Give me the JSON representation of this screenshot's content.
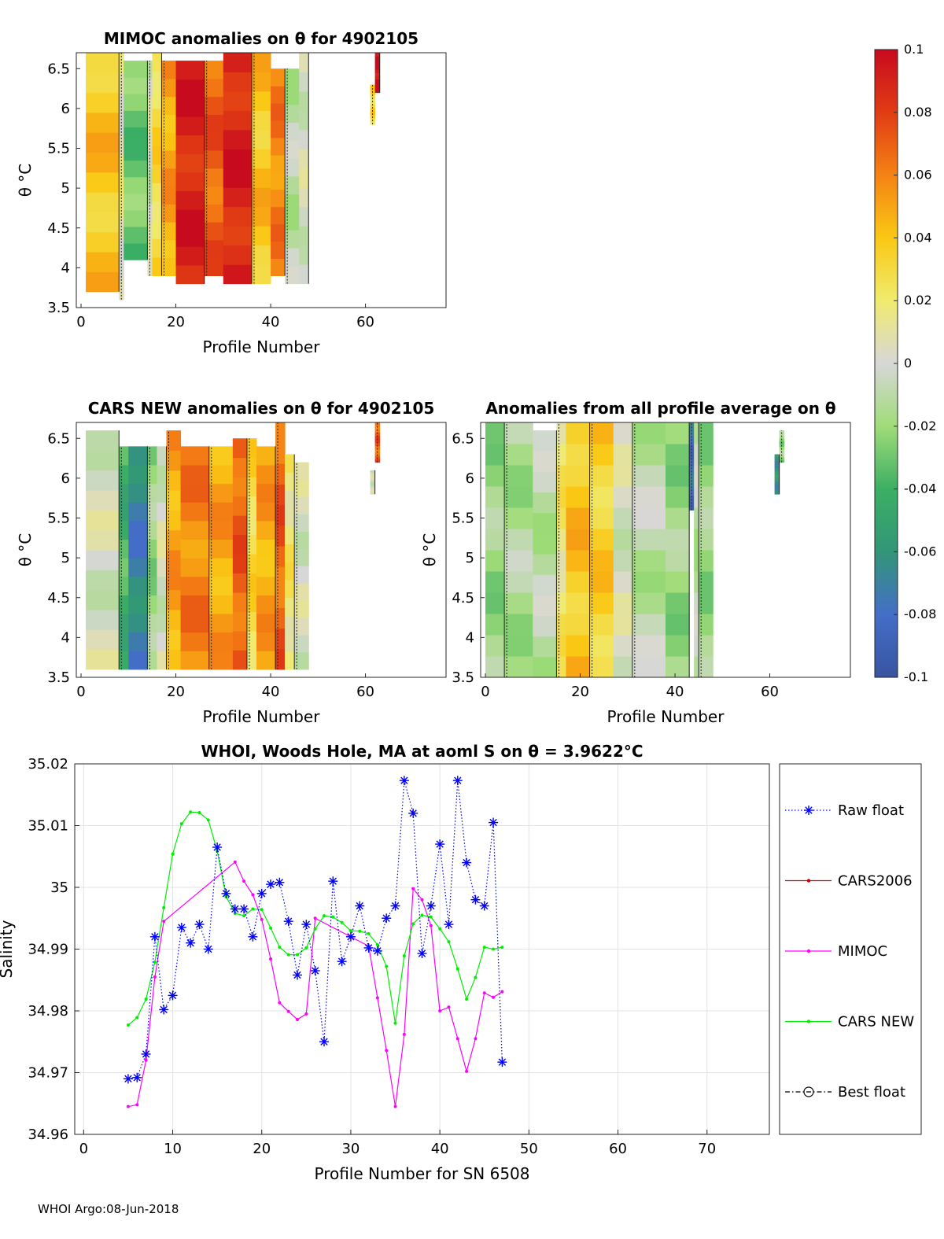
{
  "footer": "WHOI Argo:08-Jun-2018",
  "colorbar": {
    "ticks": [
      0.1,
      0.08,
      0.06,
      0.04,
      0.02,
      0,
      -0.02,
      -0.04,
      -0.06,
      -0.08,
      -0.1
    ],
    "tick_labels": [
      "0.1",
      "0.08",
      "0.06",
      "0.04",
      "0.02",
      "0",
      "-0.02",
      "-0.04",
      "-0.06",
      "-0.08",
      "-0.1"
    ],
    "range": [
      -0.1,
      0.1
    ]
  },
  "chart_data": [
    {
      "type": "heatmap",
      "title": "MIMOC anomalies on θ  for 4902105",
      "xlabel": "Profile Number",
      "ylabel": "θ °C",
      "xlim": [
        -1,
        77
      ],
      "ylim": [
        3.5,
        6.7
      ],
      "xticks": [
        0,
        20,
        40,
        60
      ],
      "yticks": [
        3.5,
        4,
        4.5,
        5,
        5.5,
        6,
        6.5
      ],
      "ytick_labels": [
        "3.5",
        "4",
        "4.5",
        "5",
        "5.5",
        "6",
        "6.5"
      ],
      "columns": [
        {
          "x0": 1,
          "x1": 8,
          "ymin": 3.7,
          "ymax": 6.7,
          "value": 0.04
        },
        {
          "x0": 8,
          "x1": 9,
          "ymin": 3.6,
          "ymax": 6.7,
          "value": 0.01
        },
        {
          "x0": 9,
          "x1": 14,
          "ymin": 4.1,
          "ymax": 6.6,
          "value": -0.03
        },
        {
          "x0": 14,
          "x1": 15,
          "ymin": 3.9,
          "ymax": 6.6,
          "value": 0.0
        },
        {
          "x0": 15,
          "x1": 17,
          "ymin": 3.9,
          "ymax": 6.7,
          "value": 0.03
        },
        {
          "x0": 17,
          "x1": 20,
          "ymin": 3.9,
          "ymax": 6.6,
          "value": 0.05
        },
        {
          "x0": 20,
          "x1": 26,
          "ymin": 3.8,
          "ymax": 6.6,
          "value": 0.09
        },
        {
          "x0": 26,
          "x1": 30,
          "ymin": 3.9,
          "ymax": 6.6,
          "value": 0.07
        },
        {
          "x0": 30,
          "x1": 36,
          "ymin": 3.8,
          "ymax": 6.7,
          "value": 0.09
        },
        {
          "x0": 36,
          "x1": 40,
          "ymin": 3.8,
          "ymax": 6.7,
          "value": 0.04
        },
        {
          "x0": 40,
          "x1": 43,
          "ymin": 3.9,
          "ymax": 6.5,
          "value": 0.06
        },
        {
          "x0": 43,
          "x1": 46,
          "ymin": 3.8,
          "ymax": 6.5,
          "value": -0.01
        },
        {
          "x0": 46,
          "x1": 48,
          "ymin": 3.8,
          "ymax": 6.7,
          "value": 0.0
        },
        {
          "x0": 61,
          "x1": 62,
          "ymin": 5.8,
          "ymax": 6.3,
          "value": 0.03
        },
        {
          "x0": 62,
          "x1": 63,
          "ymin": 6.2,
          "ymax": 6.7,
          "value": 0.1
        }
      ]
    },
    {
      "type": "heatmap",
      "title": "CARS NEW anomalies on θ for 4902105",
      "xlabel": "Profile Number",
      "ylabel": "θ °C",
      "xlim": [
        -1,
        77
      ],
      "ylim": [
        3.5,
        6.7
      ],
      "xticks": [
        0,
        20,
        40,
        60
      ],
      "yticks": [
        3.5,
        4,
        4.5,
        5,
        5.5,
        6,
        6.5
      ],
      "ytick_labels": [
        "3.5",
        "4",
        "4.5",
        "5",
        "5.5",
        "6",
        "6.5"
      ],
      "columns": [
        {
          "x0": 1,
          "x1": 8,
          "ymin": 3.6,
          "ymax": 6.6,
          "value": 0.0
        },
        {
          "x0": 8,
          "x1": 10,
          "ymin": 3.6,
          "ymax": 6.4,
          "value": -0.04
        },
        {
          "x0": 10,
          "x1": 14,
          "ymin": 3.6,
          "ymax": 6.4,
          "value": -0.07
        },
        {
          "x0": 14,
          "x1": 16,
          "ymin": 3.6,
          "ymax": 6.4,
          "value": -0.02
        },
        {
          "x0": 16,
          "x1": 18,
          "ymin": 3.6,
          "ymax": 6.4,
          "value": 0.0
        },
        {
          "x0": 18,
          "x1": 21,
          "ymin": 3.6,
          "ymax": 6.6,
          "value": 0.05
        },
        {
          "x0": 21,
          "x1": 27,
          "ymin": 3.6,
          "ymax": 6.4,
          "value": 0.06
        },
        {
          "x0": 27,
          "x1": 32,
          "ymin": 3.6,
          "ymax": 6.4,
          "value": 0.05
        },
        {
          "x0": 32,
          "x1": 35,
          "ymin": 3.6,
          "ymax": 6.5,
          "value": 0.07
        },
        {
          "x0": 35,
          "x1": 37,
          "ymin": 3.6,
          "ymax": 6.5,
          "value": 0.03
        },
        {
          "x0": 37,
          "x1": 41,
          "ymin": 3.6,
          "ymax": 6.4,
          "value": 0.05
        },
        {
          "x0": 41,
          "x1": 43,
          "ymin": 3.6,
          "ymax": 6.7,
          "value": 0.07
        },
        {
          "x0": 43,
          "x1": 45,
          "ymin": 3.6,
          "ymax": 6.3,
          "value": 0.02
        },
        {
          "x0": 45,
          "x1": 48,
          "ymin": 3.6,
          "ymax": 6.2,
          "value": 0.0
        },
        {
          "x0": 61,
          "x1": 62,
          "ymin": 5.8,
          "ymax": 6.1,
          "value": 0.0
        },
        {
          "x0": 62,
          "x1": 63,
          "ymin": 6.2,
          "ymax": 6.7,
          "value": 0.07
        }
      ]
    },
    {
      "type": "heatmap",
      "title": "Anomalies from all profile average on θ",
      "xlabel": "Profile Number",
      "ylabel": "θ °C",
      "xlim": [
        -1,
        77
      ],
      "ylim": [
        3.5,
        6.7
      ],
      "xticks": [
        0,
        20,
        40,
        60
      ],
      "yticks": [
        3.5,
        4,
        4.5,
        5,
        5.5,
        6,
        6.5
      ],
      "ytick_labels": [
        "3.5",
        "4",
        "4.5",
        "5",
        "5.5",
        "6",
        "6.5"
      ],
      "columns": [
        {
          "x0": 0,
          "x1": 4,
          "ymin": 3.5,
          "ymax": 6.7,
          "value": -0.02
        },
        {
          "x0": 4,
          "x1": 10,
          "ymin": 3.5,
          "ymax": 6.7,
          "value": -0.015
        },
        {
          "x0": 10,
          "x1": 15,
          "ymin": 3.5,
          "ymax": 6.6,
          "value": -0.01
        },
        {
          "x0": 15,
          "x1": 17,
          "ymin": 3.5,
          "ymax": 6.7,
          "value": 0.02
        },
        {
          "x0": 17,
          "x1": 22,
          "ymin": 3.5,
          "ymax": 6.7,
          "value": 0.04
        },
        {
          "x0": 22,
          "x1": 27,
          "ymin": 3.5,
          "ymax": 6.7,
          "value": 0.035
        },
        {
          "x0": 27,
          "x1": 31,
          "ymin": 3.5,
          "ymax": 6.7,
          "value": 0.0
        },
        {
          "x0": 31,
          "x1": 38,
          "ymin": 3.5,
          "ymax": 6.7,
          "value": -0.01
        },
        {
          "x0": 38,
          "x1": 43,
          "ymin": 3.5,
          "ymax": 6.7,
          "value": -0.02
        },
        {
          "x0": 43,
          "x1": 44,
          "ymin": 5.6,
          "ymax": 6.7,
          "value": -0.08
        },
        {
          "x0": 44,
          "x1": 45,
          "ymin": 3.5,
          "ymax": 6.7,
          "value": -0.01
        },
        {
          "x0": 45,
          "x1": 48,
          "ymin": 3.5,
          "ymax": 6.7,
          "value": -0.02
        },
        {
          "x0": 61,
          "x1": 62,
          "ymin": 5.8,
          "ymax": 6.3,
          "value": -0.06
        },
        {
          "x0": 62,
          "x1": 63,
          "ymin": 6.2,
          "ymax": 6.6,
          "value": -0.02
        }
      ]
    },
    {
      "type": "line",
      "title": "WHOI, Woods Hole, MA at aoml S on θ = 3.9622°C",
      "xlabel": "Profile Number for SN 6508",
      "ylabel": "Salinity",
      "xlim": [
        -1,
        77
      ],
      "ylim": [
        34.96,
        35.02
      ],
      "xticks": [
        0,
        10,
        20,
        30,
        40,
        50,
        60,
        70
      ],
      "yticks": [
        34.96,
        34.97,
        34.98,
        34.99,
        35,
        35.01,
        35.02
      ],
      "ytick_labels": [
        "34.96",
        "34.97",
        "34.98",
        "34.99",
        "35",
        "35.01",
        "35.02"
      ],
      "grid": true,
      "legend_position": "right-outside",
      "series": [
        {
          "name": "Raw float",
          "color": "#0000ff",
          "marker": "asterisk",
          "line": "dotted",
          "x": [
            5,
            6,
            7,
            8,
            9,
            10,
            11,
            12,
            13,
            14,
            15,
            16,
            17,
            18,
            19,
            20,
            21,
            22,
            23,
            24,
            25,
            26,
            27,
            28,
            29,
            30,
            31,
            32,
            33,
            34,
            35,
            36,
            37,
            38,
            39,
            40,
            41,
            42,
            43,
            44,
            45,
            46,
            47
          ],
          "y": [
            34.969,
            34.9692,
            34.973,
            34.992,
            34.9802,
            34.9825,
            34.9935,
            34.991,
            34.994,
            34.99,
            35.0065,
            34.999,
            34.9965,
            34.9965,
            34.992,
            34.999,
            35.0005,
            35.0008,
            34.9945,
            34.9858,
            34.994,
            34.9865,
            34.975,
            35.001,
            34.988,
            34.992,
            34.997,
            34.9902,
            34.9897,
            34.995,
            34.997,
            35.0173,
            35.012,
            34.9893,
            34.997,
            35.007,
            34.994,
            35.0173,
            35.004,
            34.998,
            34.997,
            35.0105,
            34.9717
          ]
        },
        {
          "name": "CARS2006",
          "color": "#d00000",
          "marker": "dot",
          "line": "solid",
          "x": [],
          "y": []
        },
        {
          "name": "MIMOC",
          "color": "#ff00ff",
          "marker": "dot",
          "line": "solid",
          "x": [
            5,
            6,
            7,
            8,
            9,
            17,
            18,
            19,
            20,
            21,
            22,
            23,
            24,
            25,
            26,
            32,
            33,
            34,
            35,
            36,
            37,
            38,
            39,
            40,
            41,
            42,
            43,
            44,
            45,
            46,
            47
          ],
          "y": [
            34.9645,
            34.9648,
            34.972,
            34.9855,
            34.9945,
            35.0041,
            35.001,
            34.9988,
            34.9948,
            34.9884,
            34.9813,
            34.9799,
            34.9786,
            34.9795,
            34.995,
            34.9905,
            34.9821,
            34.9736,
            34.9645,
            34.9762,
            34.9998,
            34.998,
            34.9938,
            34.98,
            34.9806,
            34.9755,
            34.9702,
            34.9755,
            34.9829,
            34.9822,
            34.9831
          ]
        },
        {
          "name": "CARS NEW",
          "color": "#00ee00",
          "marker": "dot",
          "line": "solid",
          "x": [
            5,
            6,
            7,
            8,
            9,
            10,
            11,
            12,
            13,
            14,
            15,
            16,
            17,
            18,
            19,
            20,
            21,
            22,
            23,
            24,
            25,
            26,
            27,
            28,
            29,
            30,
            31,
            32,
            33,
            34,
            35,
            36,
            37,
            38,
            39,
            40,
            41,
            42,
            43,
            44,
            45,
            46,
            47
          ],
          "y": [
            34.9777,
            34.9789,
            34.9819,
            34.9879,
            34.9967,
            35.0054,
            35.0103,
            35.0122,
            35.0121,
            35.0109,
            35.0059,
            34.9985,
            34.9958,
            34.9954,
            34.9965,
            34.9964,
            34.9934,
            34.9903,
            34.9891,
            34.9891,
            34.9902,
            34.9933,
            34.9954,
            34.9952,
            34.9943,
            34.993,
            34.9929,
            34.9925,
            34.9907,
            34.9872,
            34.978,
            34.9889,
            34.9941,
            34.9955,
            34.9952,
            34.9933,
            34.9912,
            34.9868,
            34.9819,
            34.9854,
            34.9903,
            34.99,
            34.9903
          ]
        },
        {
          "name": "Best float",
          "color": "#000000",
          "marker": "circle",
          "line": "dashdot",
          "x": [],
          "y": []
        }
      ]
    }
  ]
}
